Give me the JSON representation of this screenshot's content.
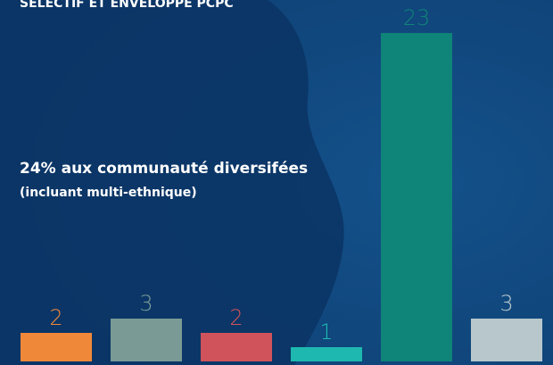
{
  "chart_data": {
    "type": "bar",
    "title": "SÉLECTIF ET ENVELOPPE PCPC",
    "annotations": [
      "24%  aux communauté diversifées",
      "(incluant multi-ethnique)"
    ],
    "categories": [
      null,
      null,
      null,
      null,
      null,
      null
    ],
    "values": [
      2,
      3,
      2,
      1,
      23,
      3
    ],
    "colors": [
      "#f0883a",
      "#7a9a96",
      "#d0525a",
      "#1fb8b0",
      "#0f8478",
      "#b7c7cc"
    ]
  }
}
